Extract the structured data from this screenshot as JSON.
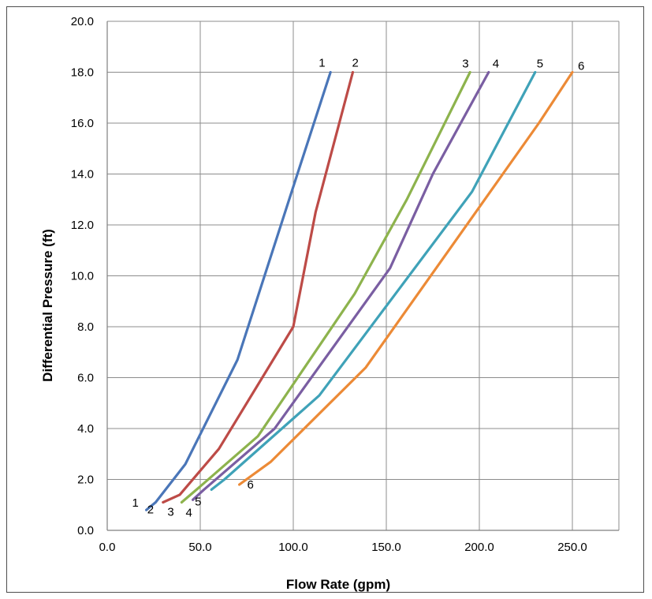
{
  "chart_data": {
    "type": "line",
    "title": "",
    "xlabel": "Flow Rate (gpm)",
    "ylabel": "Differential Pressure  (ft)",
    "xlim": [
      0,
      275
    ],
    "ylim": [
      0,
      20
    ],
    "x_ticks": [
      "0.0",
      "50.0",
      "100.0",
      "150.0",
      "200.0",
      "250.0"
    ],
    "x_tick_values": [
      0,
      50,
      100,
      150,
      200,
      250
    ],
    "y_ticks": [
      "0.0",
      "2.0",
      "4.0",
      "6.0",
      "8.0",
      "10.0",
      "12.0",
      "14.0",
      "16.0",
      "18.0",
      "20.0"
    ],
    "y_tick_values": [
      0,
      2,
      4,
      6,
      8,
      10,
      12,
      14,
      16,
      18,
      20
    ],
    "grid": true,
    "legend": "none",
    "series": [
      {
        "label": "1",
        "color": "#4a76b8",
        "x": [
          21,
          26,
          42,
          70,
          100,
          120
        ],
        "y": [
          0.8,
          1.1,
          2.6,
          6.7,
          13.5,
          18.0
        ]
      },
      {
        "label": "2",
        "color": "#bd4b47",
        "x": [
          30,
          39,
          60,
          100,
          112,
          132
        ],
        "y": [
          1.1,
          1.4,
          3.2,
          8.0,
          12.5,
          18.0
        ]
      },
      {
        "label": "3",
        "color": "#8db34d",
        "x": [
          40,
          48,
          81,
          133,
          161,
          195
        ],
        "y": [
          1.1,
          1.6,
          3.7,
          9.3,
          13.0,
          18.0
        ]
      },
      {
        "label": "4",
        "color": "#7a5ea2",
        "x": [
          46,
          52,
          90,
          152,
          175,
          205
        ],
        "y": [
          1.2,
          1.6,
          4.0,
          10.3,
          14.0,
          18.0
        ]
      },
      {
        "label": "5",
        "color": "#3fa2b8",
        "x": [
          56,
          63,
          114,
          196,
          230
        ],
        "y": [
          1.6,
          2.0,
          5.3,
          13.3,
          18.0
        ]
      },
      {
        "label": "6",
        "color": "#ec8a36",
        "x": [
          71,
          88,
          139,
          232,
          250
        ],
        "y": [
          1.8,
          2.7,
          6.4,
          16.0,
          18.0
        ]
      }
    ],
    "curve_labels": [
      "1",
      "2",
      "3",
      "4",
      "5",
      "6"
    ]
  }
}
